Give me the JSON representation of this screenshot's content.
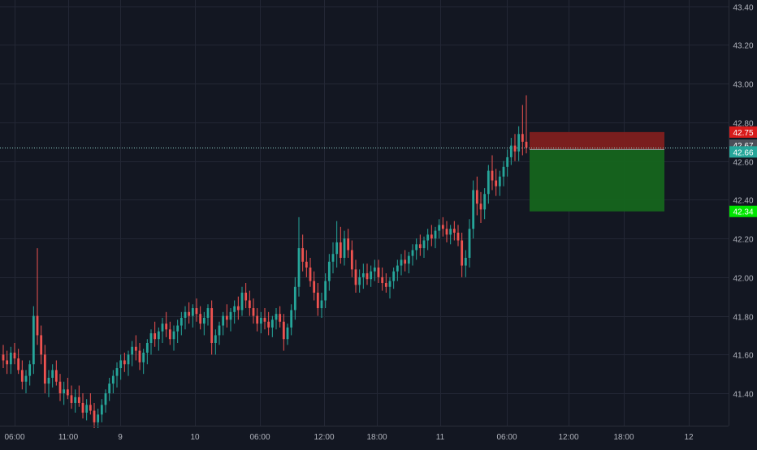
{
  "chart_data": {
    "type": "candlestick",
    "title": "",
    "xlabel": "",
    "ylabel": "",
    "grid": true,
    "ylim": [
      41.22,
      43.42
    ],
    "y_ticks": [
      41.4,
      41.6,
      41.8,
      42.0,
      42.2,
      42.4,
      42.6,
      42.8,
      43.0,
      43.2,
      43.4
    ],
    "y_tick_labels": [
      "41.40",
      "41.60",
      "41.80",
      "42.00",
      "42.20",
      "42.40",
      "42.60",
      "42.80",
      "43.00",
      "43.20",
      "43.40"
    ],
    "x_tick_labels": [
      "06:00",
      "11:00",
      "9",
      "10",
      "06:00",
      "12:00",
      "18:00",
      "11",
      "06:00",
      "12:00",
      "18:00",
      "12"
    ],
    "current_price": 42.67,
    "position_tool": {
      "stop_loss": 42.75,
      "entry": 42.66,
      "take_profit": 42.34
    },
    "price_labels": [
      {
        "text": "42.75",
        "value": 42.75,
        "color": "#d81b1b"
      },
      {
        "text": "42.67",
        "value": 42.67,
        "color": "#4b4f58"
      },
      {
        "text": "42.66",
        "value": 42.66,
        "color": "#26a69a"
      },
      {
        "text": "42.34",
        "value": 42.34,
        "color": "#00e600"
      }
    ],
    "colors": {
      "background": "#131722",
      "grid": "#232735",
      "up": "#26a69a",
      "down": "#ef5350",
      "axis_text": "#b2b5be",
      "stop_zone": "#7f1f1f",
      "target_zone": "#15651e",
      "price_line": "#8fd1c7"
    },
    "candles": [
      [
        41.6,
        41.65,
        41.53,
        41.57
      ],
      [
        41.57,
        41.62,
        41.5,
        41.55
      ],
      [
        41.55,
        41.64,
        41.5,
        41.61
      ],
      [
        41.61,
        41.66,
        41.55,
        41.58
      ],
      [
        41.58,
        41.63,
        41.5,
        41.52
      ],
      [
        41.52,
        41.57,
        41.42,
        41.46
      ],
      [
        41.46,
        41.52,
        41.4,
        41.49
      ],
      [
        41.49,
        41.57,
        41.44,
        41.55
      ],
      [
        41.55,
        41.85,
        41.5,
        41.8
      ],
      [
        41.8,
        42.15,
        41.65,
        41.7
      ],
      [
        41.7,
        41.75,
        41.55,
        41.6
      ],
      [
        41.6,
        41.65,
        41.4,
        41.45
      ],
      [
        41.45,
        41.52,
        41.38,
        41.48
      ],
      [
        41.48,
        41.55,
        41.43,
        41.52
      ],
      [
        41.52,
        41.57,
        41.44,
        41.46
      ],
      [
        41.46,
        41.5,
        41.36,
        41.4
      ],
      [
        41.4,
        41.46,
        41.34,
        41.42
      ],
      [
        41.42,
        41.48,
        41.37,
        41.39
      ],
      [
        41.39,
        41.44,
        41.32,
        41.35
      ],
      [
        41.35,
        41.42,
        41.3,
        41.38
      ],
      [
        41.38,
        41.44,
        41.33,
        41.35
      ],
      [
        41.35,
        41.4,
        41.27,
        41.3
      ],
      [
        41.3,
        41.37,
        41.26,
        41.34
      ],
      [
        41.34,
        41.4,
        41.29,
        41.31
      ],
      [
        41.31,
        41.35,
        41.22,
        41.25
      ],
      [
        41.25,
        41.32,
        41.22,
        41.29
      ],
      [
        41.29,
        41.37,
        41.25,
        41.34
      ],
      [
        41.34,
        41.42,
        41.3,
        41.4
      ],
      [
        41.4,
        41.48,
        41.36,
        41.45
      ],
      [
        41.45,
        41.52,
        41.4,
        41.49
      ],
      [
        41.49,
        41.56,
        41.43,
        41.53
      ],
      [
        41.53,
        41.6,
        41.47,
        41.57
      ],
      [
        41.57,
        41.61,
        41.51,
        41.55
      ],
      [
        41.55,
        41.62,
        41.49,
        41.6
      ],
      [
        41.6,
        41.67,
        41.54,
        41.64
      ],
      [
        41.64,
        41.7,
        41.57,
        41.62
      ],
      [
        41.62,
        41.66,
        41.52,
        41.56
      ],
      [
        41.56,
        41.63,
        41.5,
        41.61
      ],
      [
        41.61,
        41.68,
        41.55,
        41.66
      ],
      [
        41.66,
        41.73,
        41.6,
        41.71
      ],
      [
        41.71,
        41.77,
        41.64,
        41.68
      ],
      [
        41.68,
        41.74,
        41.62,
        41.72
      ],
      [
        41.72,
        41.79,
        41.66,
        41.76
      ],
      [
        41.76,
        41.82,
        41.69,
        41.73
      ],
      [
        41.73,
        41.77,
        41.65,
        41.68
      ],
      [
        41.68,
        41.75,
        41.62,
        41.72
      ],
      [
        41.72,
        41.78,
        41.66,
        41.75
      ],
      [
        41.75,
        41.82,
        41.7,
        41.79
      ],
      [
        41.79,
        41.85,
        41.73,
        41.82
      ],
      [
        41.82,
        41.87,
        41.76,
        41.8
      ],
      [
        41.8,
        41.86,
        41.74,
        41.84
      ],
      [
        41.84,
        41.89,
        41.77,
        41.81
      ],
      [
        41.81,
        41.85,
        41.73,
        41.76
      ],
      [
        41.76,
        41.82,
        41.7,
        41.79
      ],
      [
        41.79,
        41.86,
        41.75,
        41.84
      ],
      [
        41.84,
        41.88,
        41.6,
        41.66
      ],
      [
        41.66,
        41.73,
        41.6,
        41.7
      ],
      [
        41.7,
        41.77,
        41.65,
        41.75
      ],
      [
        41.75,
        41.82,
        41.7,
        41.8
      ],
      [
        41.8,
        41.86,
        41.74,
        41.78
      ],
      [
        41.78,
        41.84,
        41.72,
        41.82
      ],
      [
        41.82,
        41.88,
        41.76,
        41.85
      ],
      [
        41.85,
        41.9,
        41.78,
        41.83
      ],
      [
        41.83,
        41.95,
        41.8,
        41.92
      ],
      [
        41.92,
        41.97,
        41.84,
        41.88
      ],
      [
        41.88,
        41.93,
        41.8,
        41.84
      ],
      [
        41.84,
        41.89,
        41.76,
        41.8
      ],
      [
        41.8,
        41.84,
        41.72,
        41.76
      ],
      [
        41.76,
        41.82,
        41.71,
        41.79
      ],
      [
        41.79,
        41.84,
        41.73,
        41.77
      ],
      [
        41.77,
        41.82,
        41.7,
        41.74
      ],
      [
        41.74,
        41.8,
        41.69,
        41.78
      ],
      [
        41.78,
        41.84,
        41.73,
        41.81
      ],
      [
        41.81,
        41.85,
        41.74,
        41.77
      ],
      [
        41.77,
        41.81,
        41.62,
        41.68
      ],
      [
        41.68,
        41.76,
        41.65,
        41.74
      ],
      [
        41.74,
        41.86,
        41.7,
        41.83
      ],
      [
        41.83,
        42.0,
        41.78,
        41.95
      ],
      [
        41.95,
        42.31,
        41.9,
        42.15
      ],
      [
        42.15,
        42.22,
        42.03,
        42.08
      ],
      [
        42.08,
        42.14,
        42.0,
        42.05
      ],
      [
        42.05,
        42.1,
        41.95,
        41.98
      ],
      [
        41.98,
        42.03,
        41.88,
        41.92
      ],
      [
        41.92,
        41.97,
        41.8,
        41.84
      ],
      [
        41.84,
        41.92,
        41.79,
        41.88
      ],
      [
        41.88,
        42.02,
        41.84,
        41.98
      ],
      [
        41.98,
        42.12,
        41.93,
        42.08
      ],
      [
        42.08,
        42.18,
        42.02,
        42.12
      ],
      [
        42.12,
        42.29,
        42.05,
        42.18
      ],
      [
        42.18,
        42.26,
        42.07,
        42.1
      ],
      [
        42.1,
        42.24,
        42.06,
        42.2
      ],
      [
        42.2,
        42.25,
        42.1,
        42.14
      ],
      [
        42.14,
        42.19,
        42.0,
        42.04
      ],
      [
        42.04,
        42.09,
        41.92,
        41.96
      ],
      [
        41.96,
        42.04,
        41.92,
        42.0
      ],
      [
        42.0,
        42.07,
        41.94,
        42.02
      ],
      [
        42.02,
        42.07,
        41.96,
        41.99
      ],
      [
        41.99,
        42.06,
        41.95,
        42.03
      ],
      [
        42.03,
        42.09,
        41.98,
        42.05
      ],
      [
        42.05,
        42.09,
        41.97,
        42.0
      ],
      [
        42.0,
        42.05,
        41.93,
        41.97
      ],
      [
        41.97,
        42.02,
        41.92,
        41.95
      ],
      [
        41.95,
        42.0,
        41.89,
        41.98
      ],
      [
        41.98,
        42.05,
        41.94,
        42.03
      ],
      [
        42.03,
        42.09,
        41.98,
        42.06
      ],
      [
        42.06,
        42.12,
        42.01,
        42.09
      ],
      [
        42.09,
        42.14,
        42.03,
        42.07
      ],
      [
        42.07,
        42.13,
        42.02,
        42.11
      ],
      [
        42.11,
        42.17,
        42.06,
        42.14
      ],
      [
        42.14,
        42.2,
        42.09,
        42.17
      ],
      [
        42.17,
        42.22,
        42.11,
        42.15
      ],
      [
        42.15,
        42.21,
        42.1,
        42.19
      ],
      [
        42.19,
        42.25,
        42.14,
        42.22
      ],
      [
        42.22,
        42.27,
        42.16,
        42.2
      ],
      [
        42.2,
        42.26,
        42.15,
        42.24
      ],
      [
        42.24,
        42.3,
        42.2,
        42.27
      ],
      [
        42.27,
        42.31,
        42.21,
        42.25
      ],
      [
        42.25,
        42.29,
        42.18,
        42.22
      ],
      [
        42.22,
        42.27,
        42.17,
        42.25
      ],
      [
        42.25,
        42.29,
        42.19,
        42.23
      ],
      [
        42.23,
        42.27,
        42.16,
        42.19
      ],
      [
        42.19,
        42.23,
        42.0,
        42.06
      ],
      [
        42.06,
        42.14,
        42.0,
        42.1
      ],
      [
        42.1,
        42.3,
        42.05,
        42.25
      ],
      [
        42.25,
        42.5,
        42.2,
        42.45
      ],
      [
        42.45,
        42.52,
        42.32,
        42.38
      ],
      [
        42.38,
        42.44,
        42.28,
        42.35
      ],
      [
        42.35,
        42.46,
        42.3,
        42.43
      ],
      [
        42.43,
        42.58,
        42.38,
        42.55
      ],
      [
        42.55,
        42.63,
        42.45,
        42.5
      ],
      [
        42.5,
        42.56,
        42.42,
        42.47
      ],
      [
        42.47,
        42.55,
        42.42,
        42.52
      ],
      [
        42.52,
        42.6,
        42.47,
        42.57
      ],
      [
        42.57,
        42.66,
        42.52,
        42.62
      ],
      [
        42.62,
        42.72,
        42.58,
        42.68
      ],
      [
        42.68,
        42.74,
        42.6,
        42.65
      ],
      [
        42.65,
        42.78,
        42.6,
        42.74
      ],
      [
        42.74,
        42.89,
        42.63,
        42.7
      ],
      [
        42.7,
        42.94,
        42.64,
        42.67
      ]
    ]
  }
}
